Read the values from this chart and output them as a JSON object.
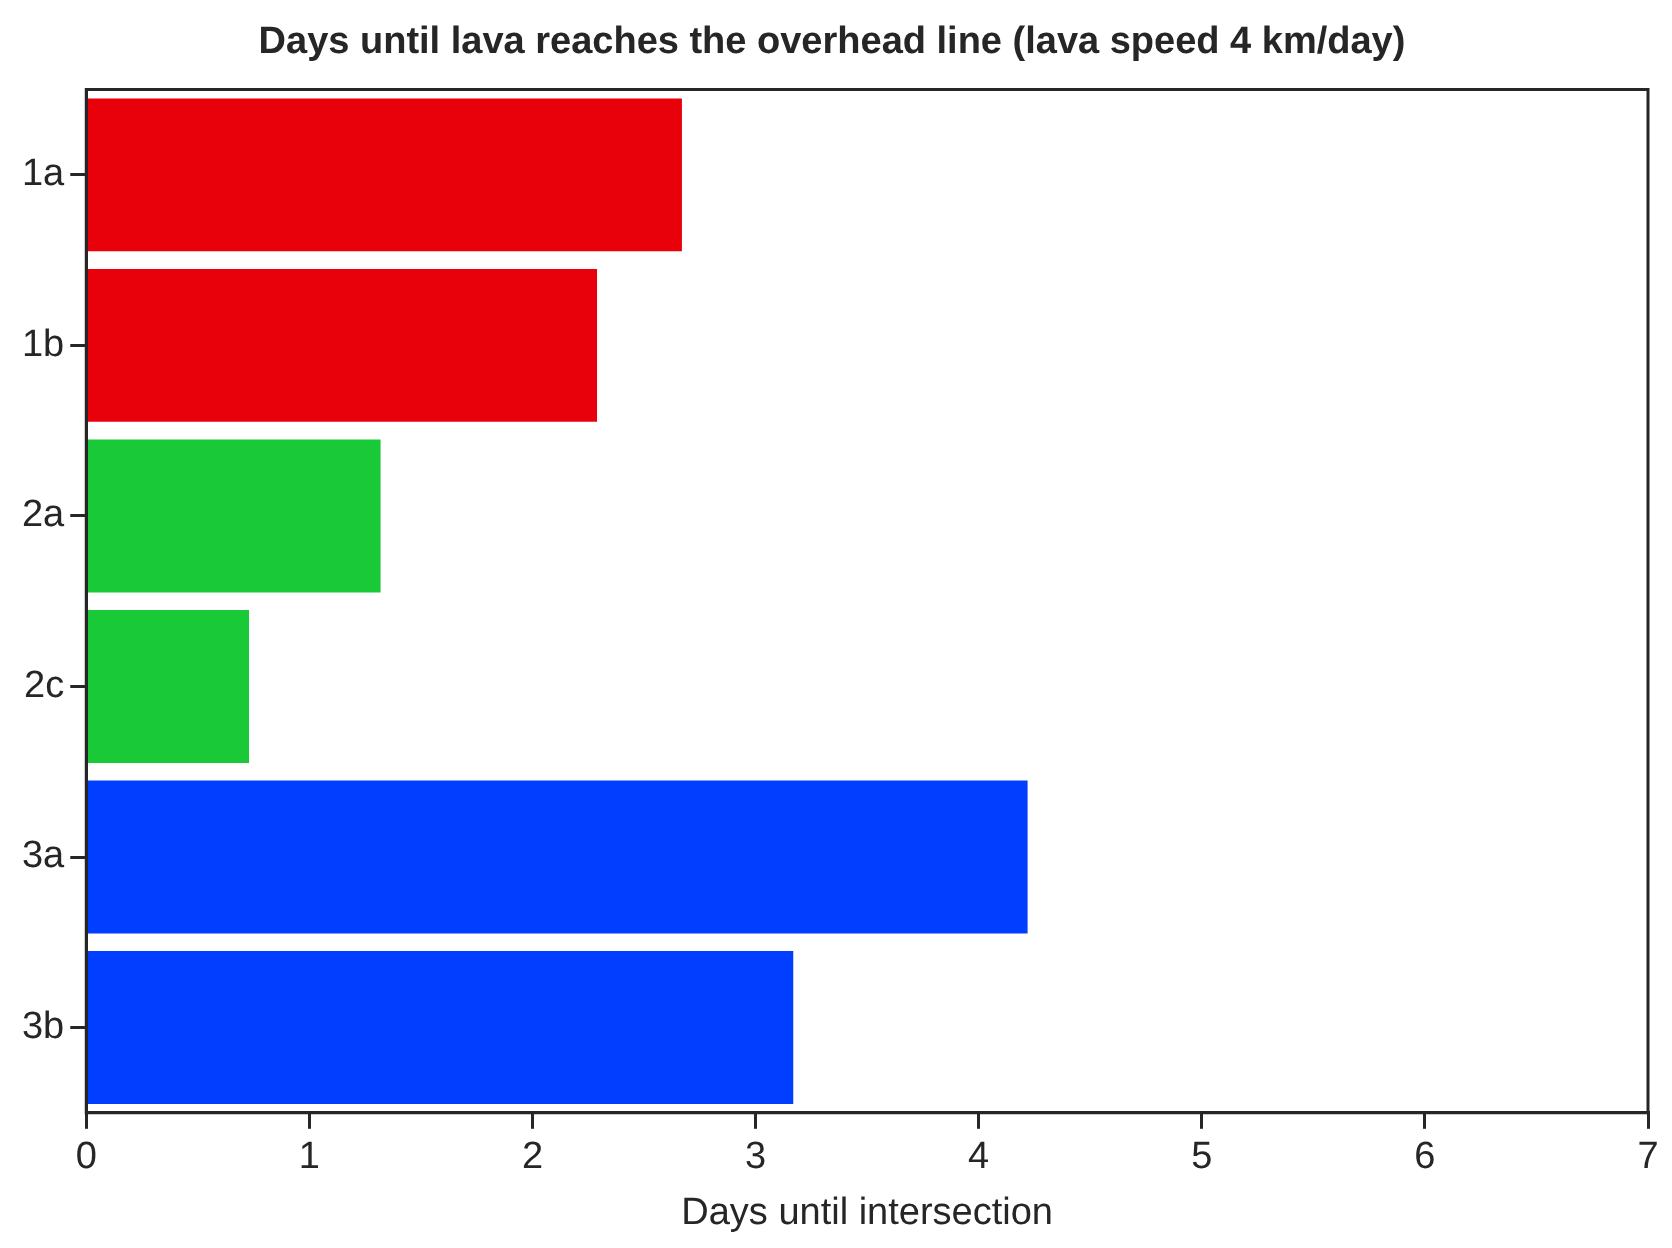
{
  "chart_data": {
    "type": "bar",
    "orientation": "horizontal",
    "title": "Days until lava reaches the overhead line (lava speed 4 km/day)",
    "xlabel": "Days until intersection",
    "categories": [
      "1a",
      "1b",
      "2a",
      "2c",
      "3a",
      "3b"
    ],
    "values": [
      2.67,
      2.29,
      1.32,
      0.73,
      4.22,
      3.17
    ],
    "colors": [
      "#e8000b",
      "#e8000b",
      "#1ac938",
      "#1ac938",
      "#023eff",
      "#023eff"
    ],
    "xlim": [
      0,
      7
    ],
    "xticks": [
      0,
      1,
      2,
      3,
      4,
      5,
      6,
      7
    ],
    "grid": false,
    "legend": false
  }
}
